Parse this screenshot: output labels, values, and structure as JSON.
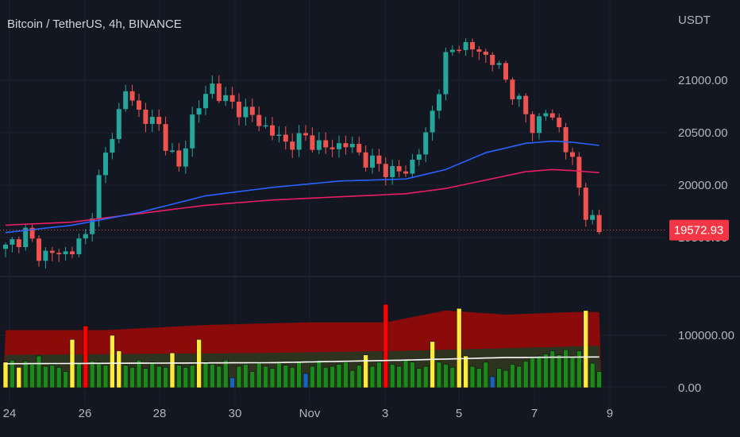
{
  "title": "Bitcoin / TetherUS, 4h, BINANCE",
  "currency_label": "USDT",
  "price_badge": "19572.93",
  "colors": {
    "background": "#131722",
    "grid": "#1e222d",
    "up": "#26a69a",
    "down": "#ef5350",
    "ma_fast": "#2962ff",
    "ma_slow": "#e91e63",
    "badge": "#f23645",
    "vol_band_high": "#8b0a0a",
    "vol_band_mid": "#2e3320",
    "vol_avg_line": "#ffffff",
    "vol_normal": "#1b8a1b",
    "vol_high": "#ffeb3b",
    "vol_extreme": "#ff0000",
    "vol_low": "#1565c0"
  },
  "chart_data": [
    {
      "type": "candlestick",
      "title": "Bitcoin / TetherUS, 4h, BINANCE",
      "ylabel": "USDT",
      "ylim": [
        19300,
        21700
      ],
      "price_ticks": [
        "21000.00",
        "20500.00",
        "20000.00",
        "19500.00"
      ],
      "current_price": 19572.93,
      "x_tick_labels": [
        "24",
        "26",
        "28",
        "30",
        "Nov",
        "3",
        "5",
        "7",
        "9"
      ],
      "close_path": [
        [
          0,
          19400
        ],
        [
          3,
          19550
        ],
        [
          5,
          19350
        ],
        [
          9,
          19350
        ],
        [
          12,
          19500
        ],
        [
          14,
          20050
        ],
        [
          16,
          20500
        ],
        [
          18,
          20900
        ],
        [
          20,
          20700
        ],
        [
          23,
          20550
        ],
        [
          26,
          20150
        ],
        [
          28,
          20650
        ],
        [
          31,
          20950
        ],
        [
          33,
          20800
        ],
        [
          36,
          20700
        ],
        [
          39,
          20550
        ],
        [
          42,
          20400
        ],
        [
          45,
          20450
        ],
        [
          48,
          20350
        ],
        [
          51,
          20400
        ],
        [
          54,
          20250
        ],
        [
          57,
          20150
        ],
        [
          60,
          20120
        ],
        [
          63,
          20450
        ],
        [
          66,
          21200
        ],
        [
          68,
          21350
        ],
        [
          70,
          21300
        ],
        [
          73,
          21200
        ],
        [
          76,
          20900
        ],
        [
          79,
          20550
        ],
        [
          81,
          20700
        ],
        [
          83,
          20550
        ],
        [
          85,
          20200
        ],
        [
          87,
          19750
        ],
        [
          89,
          19550
        ]
      ],
      "ma_fast_path": [
        [
          0,
          19550
        ],
        [
          10,
          19620
        ],
        [
          20,
          19740
        ],
        [
          30,
          19900
        ],
        [
          40,
          19980
        ],
        [
          50,
          20040
        ],
        [
          60,
          20060
        ],
        [
          66,
          20150
        ],
        [
          72,
          20310
        ],
        [
          78,
          20400
        ],
        [
          82,
          20420
        ],
        [
          85,
          20410
        ],
        [
          89,
          20380
        ]
      ],
      "ma_slow_path": [
        [
          0,
          19620
        ],
        [
          10,
          19650
        ],
        [
          20,
          19730
        ],
        [
          30,
          19810
        ],
        [
          40,
          19860
        ],
        [
          50,
          19890
        ],
        [
          60,
          19920
        ],
        [
          66,
          19970
        ],
        [
          72,
          20050
        ],
        [
          78,
          20130
        ],
        [
          82,
          20150
        ],
        [
          85,
          20140
        ],
        [
          89,
          20120
        ]
      ]
    },
    {
      "type": "bar",
      "ylabel": "",
      "ylim": [
        0,
        180000
      ],
      "volume_ticks": [
        "100000.00",
        "0.00"
      ],
      "band_high": [
        [
          0,
          110000
        ],
        [
          15,
          110000
        ],
        [
          30,
          120000
        ],
        [
          45,
          125000
        ],
        [
          57,
          125000
        ],
        [
          66,
          148000
        ],
        [
          75,
          140000
        ],
        [
          85,
          145000
        ],
        [
          89,
          145000
        ]
      ],
      "band_mid": [
        [
          0,
          62000
        ],
        [
          20,
          64000
        ],
        [
          40,
          66000
        ],
        [
          60,
          70000
        ],
        [
          75,
          75000
        ],
        [
          89,
          80000
        ]
      ],
      "avg_line": [
        [
          0,
          45000
        ],
        [
          20,
          46000
        ],
        [
          40,
          47000
        ],
        [
          60,
          52000
        ],
        [
          75,
          57000
        ],
        [
          89,
          58000
        ]
      ],
      "values": [
        48000,
        52000,
        38000,
        50000,
        44000,
        60000,
        40000,
        42000,
        38000,
        30000,
        92000,
        46000,
        118000,
        50000,
        48000,
        42000,
        100000,
        70000,
        42000,
        38000,
        52000,
        36000,
        48000,
        40000,
        38000,
        66000,
        42000,
        38000,
        42000,
        92000,
        48000,
        44000,
        40000,
        52000,
        18000,
        40000,
        44000,
        30000,
        48000,
        40000,
        36000,
        48000,
        42000,
        38000,
        48000,
        26000,
        40000,
        52000,
        38000,
        40000,
        44000,
        48000,
        32000,
        42000,
        62000,
        40000,
        48000,
        160000,
        44000,
        40000,
        52000,
        48000,
        36000,
        40000,
        88000,
        48000,
        44000,
        38000,
        152000,
        60000,
        40000,
        36000,
        48000,
        20000,
        36000,
        32000,
        44000,
        40000,
        50000,
        56000,
        60000,
        64000,
        70000,
        62000,
        72000,
        60000,
        70000,
        148000,
        46000,
        30000
      ],
      "kinds": [
        "y",
        "g",
        "y",
        "g",
        "g",
        "g",
        "g",
        "g",
        "g",
        "g",
        "y",
        "g",
        "r",
        "g",
        "g",
        "g",
        "y",
        "y",
        "g",
        "g",
        "g",
        "g",
        "g",
        "g",
        "g",
        "y",
        "g",
        "g",
        "g",
        "y",
        "g",
        "g",
        "g",
        "g",
        "b",
        "g",
        "g",
        "g",
        "g",
        "g",
        "g",
        "g",
        "g",
        "g",
        "g",
        "b",
        "g",
        "g",
        "g",
        "g",
        "g",
        "g",
        "g",
        "g",
        "y",
        "g",
        "g",
        "r",
        "g",
        "g",
        "g",
        "g",
        "g",
        "g",
        "y",
        "g",
        "g",
        "g",
        "y",
        "y",
        "g",
        "g",
        "g",
        "b",
        "g",
        "g",
        "g",
        "g",
        "g",
        "g",
        "g",
        "g",
        "g",
        "g",
        "g",
        "g",
        "g",
        "y",
        "g",
        "g"
      ]
    }
  ]
}
